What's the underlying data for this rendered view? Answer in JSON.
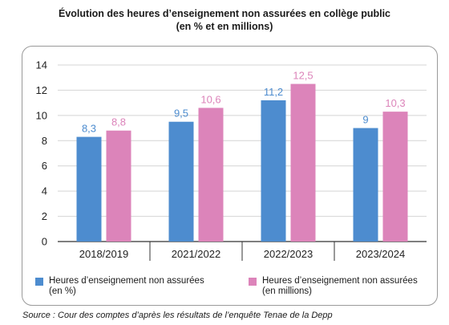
{
  "page": {
    "title_line1": "Évolution des heures d’enseignement non assurées en collège public",
    "title_line2": "(en % et en millions)",
    "source": "Source : Cour des comptes d’après les résultats de l’enquête Tenae de la Depp"
  },
  "colors": {
    "blue": "#4d8ccf",
    "pink": "#dc84ba",
    "grid": "#d4d4d4",
    "axis": "#333333"
  },
  "legend": [
    {
      "line1": "Heures d’enseignement non assurées",
      "line2": "(en %)",
      "color": "#4d8ccf"
    },
    {
      "line1": "Heures d’enseignement non assurées",
      "line2": "(en millions)",
      "color": "#dc84ba"
    }
  ],
  "chart_data": {
    "type": "bar",
    "title": "Évolution des heures d’enseignement non assurées en collège public (en % et en millions)",
    "categories": [
      "2018/2019",
      "2021/2022",
      "2022/2023",
      "2023/2024"
    ],
    "series": [
      {
        "name": "Heures d’enseignement non assurées (en %)",
        "color": "#4d8ccf",
        "values": [
          8.3,
          9.5,
          11.2,
          9
        ],
        "labels": [
          "8,3",
          "9,5",
          "11,2",
          "9"
        ]
      },
      {
        "name": "Heures d’enseignement non assurées (en millions)",
        "color": "#dc84ba",
        "values": [
          8.8,
          10.6,
          12.5,
          10.3
        ],
        "labels": [
          "8,8",
          "10,6",
          "12,5",
          "10,3"
        ]
      }
    ],
    "ylim": [
      0,
      14
    ],
    "yticks": [
      0,
      2,
      4,
      6,
      8,
      10,
      12,
      14
    ],
    "grid": true,
    "legend_position": "bottom"
  }
}
